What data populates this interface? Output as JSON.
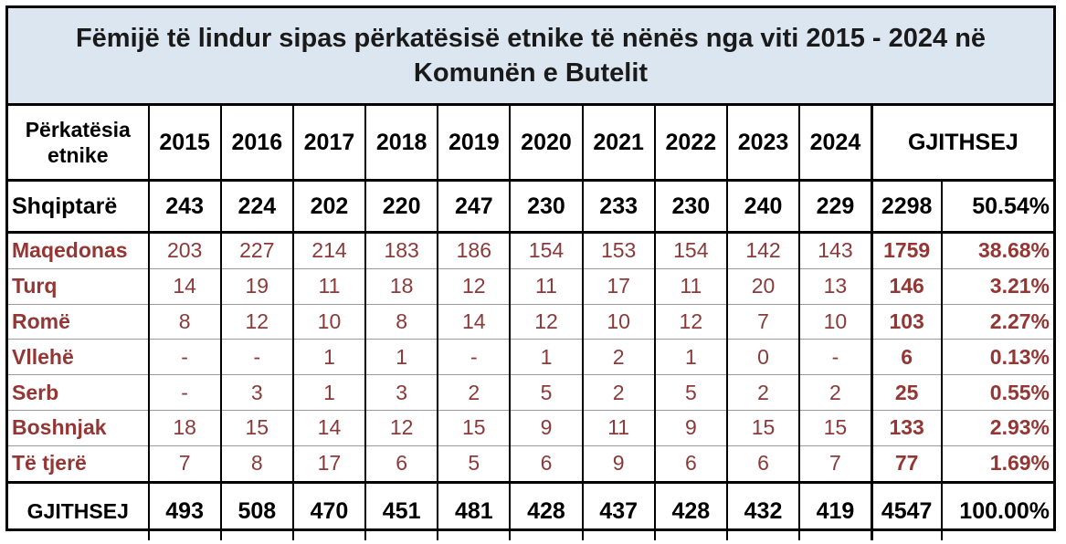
{
  "title": {
    "line1": "Fëmijë të lindur sipas përkatësisë etnike të nënës nga viti 2015 - 2024 në",
    "line2": "Komunën e Butelit"
  },
  "header": {
    "label_line1": "Përkatësia",
    "label_line2": "etnike",
    "years": [
      "2015",
      "2016",
      "2017",
      "2018",
      "2019",
      "2020",
      "2021",
      "2022",
      "2023",
      "2024"
    ],
    "total": "GJITHSEJ"
  },
  "rows": [
    {
      "name": "Shqiptarë",
      "values": [
        "243",
        "224",
        "202",
        "220",
        "247",
        "230",
        "233",
        "230",
        "240",
        "229"
      ],
      "total": "2298",
      "pct": "50.54%"
    },
    {
      "name": "Maqedonas",
      "values": [
        "203",
        "227",
        "214",
        "183",
        "186",
        "154",
        "153",
        "154",
        "142",
        "143"
      ],
      "total": "1759",
      "pct": "38.68%"
    },
    {
      "name": "Turq",
      "values": [
        "14",
        "19",
        "11",
        "18",
        "12",
        "11",
        "17",
        "11",
        "20",
        "13"
      ],
      "total": "146",
      "pct": "3.21%"
    },
    {
      "name": "Romë",
      "values": [
        "8",
        "12",
        "10",
        "8",
        "14",
        "12",
        "10",
        "12",
        "7",
        "10"
      ],
      "total": "103",
      "pct": "2.27%"
    },
    {
      "name": "Vllehë",
      "values": [
        "-",
        "-",
        "1",
        "1",
        "-",
        "1",
        "2",
        "1",
        "0",
        "-"
      ],
      "total": "6",
      "pct": "0.13%"
    },
    {
      "name": "Serb",
      "values": [
        "-",
        "3",
        "1",
        "3",
        "2",
        "5",
        "2",
        "5",
        "2",
        "2"
      ],
      "total": "25",
      "pct": "0.55%"
    },
    {
      "name": "Boshnjak",
      "values": [
        "18",
        "15",
        "14",
        "12",
        "15",
        "9",
        "11",
        "9",
        "15",
        "15"
      ],
      "total": "133",
      "pct": "2.93%"
    },
    {
      "name": "Të tjerë",
      "values": [
        "7",
        "8",
        "17",
        "6",
        "5",
        "6",
        "9",
        "6",
        "6",
        "7"
      ],
      "total": "77",
      "pct": "1.69%"
    }
  ],
  "footer": {
    "label": "GJITHSEJ",
    "values": [
      "493",
      "508",
      "470",
      "451",
      "481",
      "428",
      "437",
      "428",
      "432",
      "419"
    ],
    "total": "4547",
    "pct": "100.00%"
  },
  "colors": {
    "title_bg": "#dce6f1",
    "accent_text": "#943634"
  }
}
